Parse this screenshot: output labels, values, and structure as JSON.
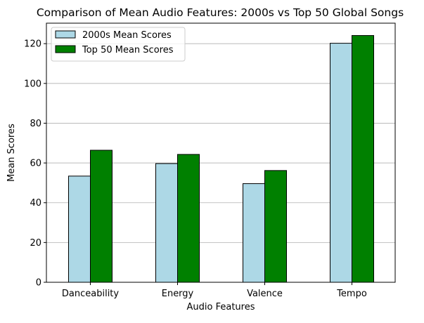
{
  "chart_data": {
    "type": "bar",
    "title": "Comparison of Mean Audio Features: 2000s vs Top 50 Global Songs",
    "xlabel": "Audio Features",
    "ylabel": "Mean Scores",
    "categories": [
      "Danceability",
      "Energy",
      "Valence",
      "Tempo"
    ],
    "series": [
      {
        "name": "2000s Mean Scores",
        "color": "#add8e6",
        "values": [
          53.4,
          59.7,
          49.6,
          120.2
        ]
      },
      {
        "name": "Top 50 Mean Scores",
        "color": "#008000",
        "values": [
          66.4,
          64.3,
          56.2,
          124.1
        ]
      }
    ],
    "ylim": [
      0,
      130.3
    ],
    "yticks": [
      0,
      20,
      40,
      60,
      80,
      100,
      120
    ],
    "grid": "horizontal",
    "legend_position": "top-left"
  }
}
